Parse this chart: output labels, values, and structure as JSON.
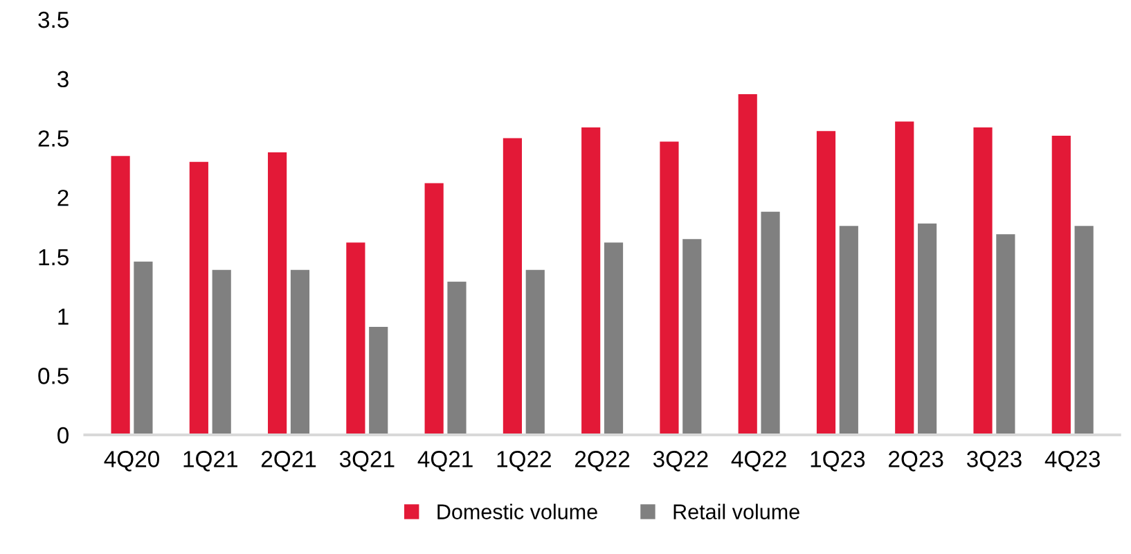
{
  "chart_data": {
    "type": "bar",
    "categories": [
      "4Q20",
      "1Q21",
      "2Q21",
      "3Q21",
      "4Q21",
      "1Q22",
      "2Q22",
      "3Q22",
      "4Q22",
      "1Q23",
      "2Q23",
      "3Q23",
      "4Q23"
    ],
    "series": [
      {
        "name": "Domestic volume",
        "color": "#e31937",
        "values": [
          2.35,
          2.3,
          2.38,
          1.62,
          2.12,
          2.5,
          2.59,
          2.47,
          2.87,
          2.56,
          2.64,
          2.59,
          2.52
        ]
      },
      {
        "name": "Retail volume",
        "color": "#808080",
        "values": [
          1.46,
          1.39,
          1.39,
          0.91,
          1.29,
          1.39,
          1.62,
          1.65,
          1.88,
          1.76,
          1.78,
          1.69,
          1.76
        ]
      }
    ],
    "ylim": [
      0,
      3.5
    ],
    "yticks": [
      0,
      0.5,
      1,
      1.5,
      2,
      2.5,
      3,
      3.5
    ],
    "grid": false,
    "legend": "bottom"
  }
}
